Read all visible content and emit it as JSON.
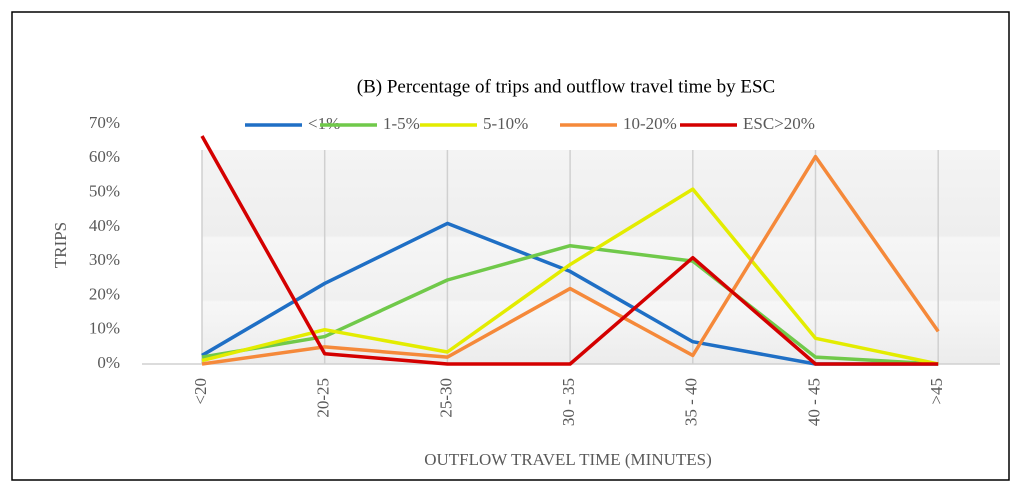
{
  "chart_data": {
    "type": "line",
    "title": "(B)  Percentage of trips and outflow travel time by ESC",
    "x_label": "OUTFLOW TRAVEL TIME (MINUTES)",
    "y_label": "TRIPS",
    "categories": [
      "<20",
      "20-25",
      "25-30",
      "30 - 35",
      "35 - 40",
      "40 - 45",
      ">45"
    ],
    "series": [
      {
        "name": "<1%",
        "color": "#1f6fc5",
        "values": [
          2.5,
          23.5,
          41,
          27,
          6.5,
          0,
          0
        ]
      },
      {
        "name": "1-5%",
        "color": "#70c94a",
        "values": [
          2,
          8,
          24.5,
          34.5,
          30,
          2,
          0
        ]
      },
      {
        "name": "5-10%",
        "color": "#e3ec00",
        "values": [
          1,
          10,
          3.5,
          29,
          51,
          7.5,
          0
        ]
      },
      {
        "name": "10-20%",
        "color": "#f5893a",
        "values": [
          0,
          5,
          2,
          22,
          2.5,
          60.5,
          9.5
        ]
      },
      {
        "name": "ESC>20%",
        "color": "#d40000",
        "values": [
          66.5,
          3,
          0,
          0,
          31,
          0,
          0
        ]
      }
    ],
    "ylim": [
      0,
      70
    ],
    "yticks": [
      {
        "value": 0,
        "label": "0%"
      },
      {
        "value": 10,
        "label": "10%"
      },
      {
        "value": 20,
        "label": "20%"
      },
      {
        "value": 30,
        "label": "30%"
      },
      {
        "value": 40,
        "label": "40%"
      },
      {
        "value": 50,
        "label": "50%"
      },
      {
        "value": 60,
        "label": "60%"
      },
      {
        "value": 70,
        "label": "70%"
      }
    ],
    "legend": "top"
  }
}
